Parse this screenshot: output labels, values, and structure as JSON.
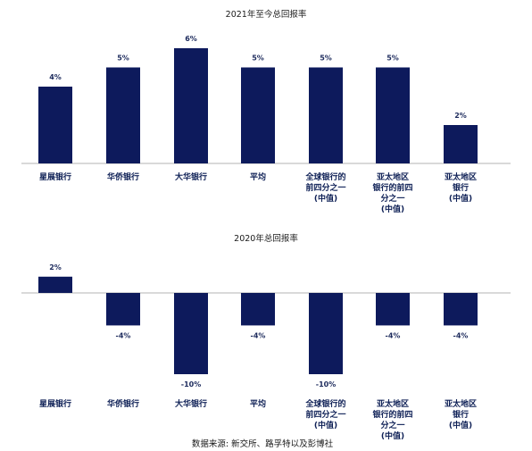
{
  "colors": {
    "bar": "#0d1a5c",
    "axis": "#b3b3b3",
    "label": "#0d1f55"
  },
  "chart_data": [
    {
      "type": "bar",
      "title": "2021年至今总回报率",
      "categories": [
        [
          "星展银行"
        ],
        [
          "华侨银行"
        ],
        [
          "大华银行"
        ],
        [
          "平均"
        ],
        [
          "全球银行的",
          "前四分之一",
          "(中值)"
        ],
        [
          "亚太地区",
          "银行的前四",
          "分之一",
          "(中值)"
        ],
        [
          "亚太地区",
          "银行",
          "(中值)"
        ]
      ],
      "values": [
        4,
        5,
        6,
        5,
        5,
        5,
        2
      ],
      "value_labels": [
        "4%",
        "5%",
        "6%",
        "5%",
        "5%",
        "5%",
        "2%"
      ],
      "unit": "%",
      "ylim": [
        0,
        6
      ],
      "grid": false,
      "legend": "none"
    },
    {
      "type": "bar",
      "title": "2020年总回报率",
      "categories": [
        [
          "星展银行"
        ],
        [
          "华侨银行"
        ],
        [
          "大华银行"
        ],
        [
          "平均"
        ],
        [
          "全球银行的",
          "前四分之一",
          "(中值)"
        ],
        [
          "亚太地区",
          "银行的前四",
          "分之一",
          "(中值)"
        ],
        [
          "亚太地区",
          "银行",
          "(中值)"
        ]
      ],
      "values": [
        2,
        -4,
        -10,
        -4,
        -10,
        -4,
        -4
      ],
      "value_labels": [
        "2%",
        "-4%",
        "-10%",
        "-4%",
        "-10%",
        "-4%",
        "-4%"
      ],
      "unit": "%",
      "ylim": [
        -10,
        2
      ],
      "grid": false,
      "legend": "none"
    }
  ],
  "source_note": "数据来源: 新交所、路孚特以及彭博社"
}
